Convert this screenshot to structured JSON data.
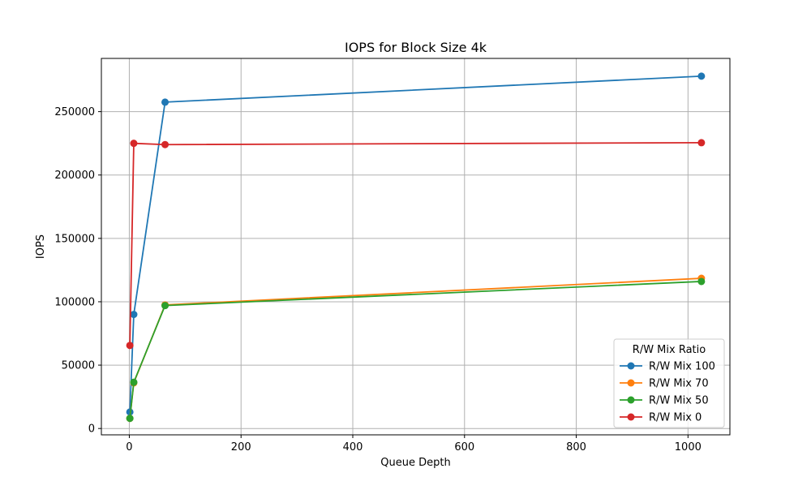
{
  "chart_data": {
    "type": "line",
    "title": "IOPS for Block Size 4k",
    "xlabel": "Queue Depth",
    "ylabel": "IOPS",
    "x": [
      1,
      8,
      64,
      1024
    ],
    "xlim": [
      -50,
      1075
    ],
    "ylim": [
      -5000,
      292000
    ],
    "xticks": [
      0,
      200,
      400,
      600,
      800,
      1000
    ],
    "yticks": [
      0,
      50000,
      100000,
      150000,
      200000,
      250000
    ],
    "xtick_labels": [
      "0",
      "200",
      "400",
      "600",
      "800",
      "1000"
    ],
    "ytick_labels": [
      "0",
      "50000",
      "100000",
      "150000",
      "200000",
      "250000"
    ],
    "grid": true,
    "marker": "circle",
    "legend": {
      "title": "R/W Mix Ratio",
      "position": "lower-right"
    },
    "series": [
      {
        "name": "R/W Mix 100",
        "color": "#1f77b4",
        "values": [
          13000,
          90000,
          257500,
          278000
        ]
      },
      {
        "name": "R/W Mix 70",
        "color": "#ff7f0e",
        "values": [
          8000,
          36000,
          97500,
          118500
        ]
      },
      {
        "name": "R/W Mix 50",
        "color": "#2ca02c",
        "values": [
          8000,
          36500,
          97000,
          116000
        ]
      },
      {
        "name": "R/W Mix 0",
        "color": "#d62728",
        "values": [
          65500,
          225000,
          224000,
          225500
        ]
      }
    ]
  }
}
